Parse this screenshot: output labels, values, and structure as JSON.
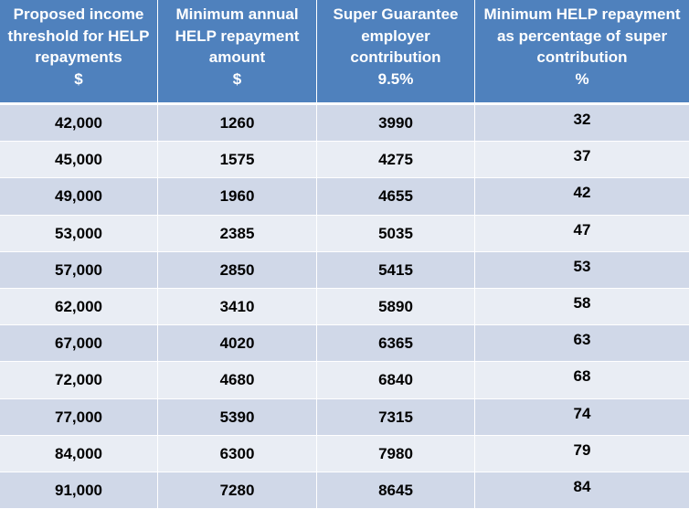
{
  "columns": [
    {
      "lines": [
        "Proposed income",
        "threshold for HELP",
        "repayments",
        "$"
      ]
    },
    {
      "lines": [
        "Minimum annual",
        "HELP repayment",
        "amount",
        "$"
      ]
    },
    {
      "lines": [
        "Super Guarantee",
        "employer",
        "contribution",
        "9.5%"
      ]
    },
    {
      "lines": [
        "Minimum HELP repayment",
        "as percentage of super",
        "contribution",
        "%"
      ]
    }
  ],
  "rows": [
    [
      "42,000",
      "1260",
      "3990",
      "32"
    ],
    [
      "45,000",
      "1575",
      "4275",
      "37"
    ],
    [
      "49,000",
      "1960",
      "4655",
      "42"
    ],
    [
      "53,000",
      "2385",
      "5035",
      "47"
    ],
    [
      "57,000",
      "2850",
      "5415",
      "53"
    ],
    [
      "62,000",
      "3410",
      "5890",
      "58"
    ],
    [
      "67,000",
      "4020",
      "6365",
      "63"
    ],
    [
      "72,000",
      "4680",
      "6840",
      "68"
    ],
    [
      "77,000",
      "5390",
      "7315",
      "74"
    ],
    [
      "84,000",
      "6300",
      "7980",
      "79"
    ],
    [
      "91,000",
      "7280",
      "8645",
      "84"
    ]
  ],
  "colors": {
    "header_bg": "#4f81bd",
    "row_band_dark": "#d0d8e8",
    "row_band_light": "#e9edf4"
  }
}
